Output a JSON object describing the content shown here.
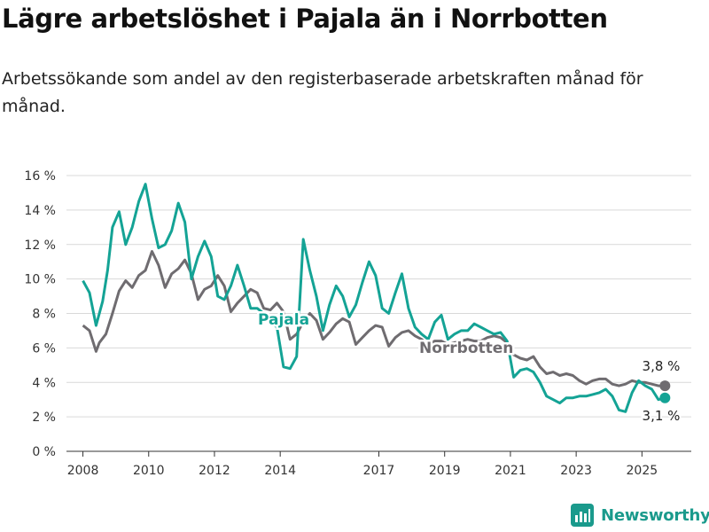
{
  "title": "Lägre arbetslöshet i Pajala än i Norrbotten",
  "subtitle": "Arbetssökande som andel av den registerbaserade arbetskraften månad för månad.",
  "brand": {
    "name": "Newsworthy",
    "icon": "bar-chart-logo-icon",
    "color": "#1a9a8c"
  },
  "colors": {
    "pajala": "#14a395",
    "norrbotten": "#6f6c70",
    "grid": "#d9d9d9",
    "axis": "#333333"
  },
  "chart_data": {
    "type": "line",
    "ylim": [
      0,
      16
    ],
    "yticks": [
      0,
      2,
      4,
      6,
      8,
      10,
      12,
      14,
      16
    ],
    "ytick_labels": [
      "0 %",
      "2 %",
      "4 %",
      "6 %",
      "8 %",
      "10 %",
      "12 %",
      "14 %",
      "16 %"
    ],
    "xlim": [
      2007.5,
      2026.5
    ],
    "xticks": [
      2008,
      2010,
      2012,
      2014,
      2017,
      2019,
      2021,
      2023,
      2025
    ],
    "xtick_labels": [
      "2008",
      "2010",
      "2012",
      "2014",
      "2017",
      "2019",
      "2021",
      "2023",
      "2025"
    ],
    "grid": true,
    "series": [
      {
        "name": "Pajala",
        "end_label": "3,1 %",
        "x": [
          2008.0,
          2008.2,
          2008.4,
          2008.6,
          2008.75,
          2008.9,
          2009.1,
          2009.3,
          2009.5,
          2009.7,
          2009.9,
          2010.1,
          2010.3,
          2010.5,
          2010.7,
          2010.9,
          2011.1,
          2011.3,
          2011.5,
          2011.7,
          2011.9,
          2012.1,
          2012.3,
          2012.5,
          2012.7,
          2012.9,
          2013.1,
          2013.3,
          2013.5,
          2013.7,
          2013.9,
          2014.1,
          2014.3,
          2014.5,
          2014.7,
          2014.9,
          2015.1,
          2015.3,
          2015.5,
          2015.7,
          2015.9,
          2016.1,
          2016.3,
          2016.5,
          2016.7,
          2016.9,
          2017.1,
          2017.3,
          2017.5,
          2017.7,
          2017.9,
          2018.1,
          2018.3,
          2018.5,
          2018.7,
          2018.9,
          2019.1,
          2019.3,
          2019.5,
          2019.7,
          2019.9,
          2020.1,
          2020.3,
          2020.5,
          2020.7,
          2020.9,
          2021.1,
          2021.3,
          2021.5,
          2021.7,
          2021.9,
          2022.1,
          2022.3,
          2022.5,
          2022.7,
          2022.9,
          2023.1,
          2023.3,
          2023.5,
          2023.7,
          2023.9,
          2024.1,
          2024.3,
          2024.5,
          2024.7,
          2024.9,
          2025.1,
          2025.3,
          2025.5,
          2025.7
        ],
        "y": [
          9.9,
          9.2,
          7.3,
          8.7,
          10.5,
          13.0,
          13.9,
          12.0,
          13.0,
          14.5,
          15.5,
          13.5,
          11.8,
          12.0,
          12.8,
          14.4,
          13.3,
          10.0,
          11.3,
          12.2,
          11.3,
          9.0,
          8.8,
          9.6,
          10.8,
          9.6,
          8.3,
          8.3,
          8.0,
          7.5,
          7.2,
          4.9,
          4.8,
          5.5,
          12.3,
          10.5,
          9.0,
          7.0,
          8.5,
          9.6,
          9.0,
          7.8,
          8.5,
          9.8,
          11.0,
          10.2,
          8.3,
          8.0,
          9.2,
          10.3,
          8.3,
          7.2,
          6.8,
          6.5,
          7.5,
          7.9,
          6.5,
          6.8,
          7.0,
          7.0,
          7.4,
          7.2,
          7.0,
          6.8,
          6.9,
          6.4,
          4.3,
          4.7,
          4.8,
          4.6,
          4.0,
          3.2,
          3.0,
          2.8,
          3.1,
          3.1,
          3.2,
          3.2,
          3.3,
          3.4,
          3.6,
          3.2,
          2.4,
          2.3,
          3.4,
          4.1,
          3.8,
          3.6,
          3.0,
          3.1
        ]
      },
      {
        "name": "Norrbotten",
        "end_label": "3,8 %",
        "x": [
          2008.0,
          2008.2,
          2008.4,
          2008.5,
          2008.7,
          2008.9,
          2009.1,
          2009.3,
          2009.5,
          2009.7,
          2009.9,
          2010.1,
          2010.3,
          2010.5,
          2010.7,
          2010.9,
          2011.1,
          2011.3,
          2011.5,
          2011.7,
          2011.9,
          2012.1,
          2012.3,
          2012.5,
          2012.7,
          2012.9,
          2013.1,
          2013.3,
          2013.5,
          2013.7,
          2013.9,
          2014.1,
          2014.3,
          2014.5,
          2014.7,
          2014.9,
          2015.1,
          2015.3,
          2015.5,
          2015.7,
          2015.9,
          2016.1,
          2016.3,
          2016.5,
          2016.7,
          2016.9,
          2017.1,
          2017.3,
          2017.5,
          2017.7,
          2017.9,
          2018.1,
          2018.3,
          2018.5,
          2018.7,
          2018.9,
          2019.1,
          2019.3,
          2019.5,
          2019.7,
          2019.9,
          2020.1,
          2020.3,
          2020.5,
          2020.7,
          2020.9,
          2021.1,
          2021.3,
          2021.5,
          2021.7,
          2021.9,
          2022.1,
          2022.3,
          2022.5,
          2022.7,
          2022.9,
          2023.1,
          2023.3,
          2023.5,
          2023.7,
          2023.9,
          2024.1,
          2024.3,
          2024.5,
          2024.7,
          2024.9,
          2025.1,
          2025.3,
          2025.5,
          2025.7
        ],
        "y": [
          7.3,
          7.0,
          5.8,
          6.3,
          6.8,
          8.0,
          9.3,
          9.9,
          9.5,
          10.2,
          10.5,
          11.6,
          10.8,
          9.5,
          10.3,
          10.6,
          11.1,
          10.3,
          8.8,
          9.4,
          9.6,
          10.2,
          9.6,
          8.1,
          8.6,
          9.0,
          9.4,
          9.2,
          8.3,
          8.2,
          8.6,
          8.1,
          6.5,
          6.8,
          7.5,
          8.0,
          7.6,
          6.5,
          6.9,
          7.4,
          7.7,
          7.5,
          6.2,
          6.6,
          7.0,
          7.3,
          7.2,
          6.1,
          6.6,
          6.9,
          7.0,
          6.7,
          6.5,
          6.2,
          6.4,
          6.4,
          6.2,
          6.3,
          6.4,
          6.5,
          6.4,
          6.4,
          6.6,
          6.7,
          6.6,
          6.3,
          5.6,
          5.4,
          5.3,
          5.5,
          4.9,
          4.5,
          4.6,
          4.4,
          4.5,
          4.4,
          4.1,
          3.9,
          4.1,
          4.2,
          4.2,
          3.9,
          3.8,
          3.9,
          4.1,
          4.0,
          4.0,
          3.9,
          3.8,
          3.8
        ]
      }
    ]
  }
}
